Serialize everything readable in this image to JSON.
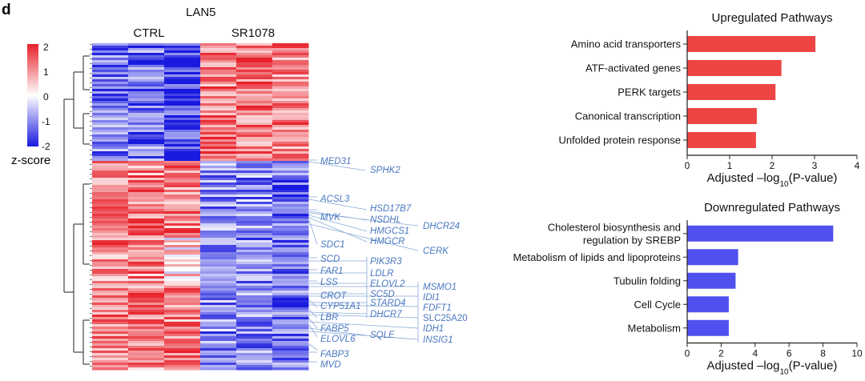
{
  "panel_letter": "d",
  "heatmap": {
    "cell_line": "LAN5",
    "group_labels": [
      "CTRL",
      "SR1078"
    ],
    "colorbar": {
      "ticks": [
        "2",
        "1",
        "0",
        "-1",
        "-2"
      ],
      "label": "z-score",
      "colors": {
        "high": "#e8202a",
        "mid": "#ffffff",
        "low": "#1a1adf"
      }
    },
    "genes": [
      "MED31",
      "SPHK2",
      "ACSL3",
      "HSD17B7",
      "MVK",
      "NSDHL",
      "DHCR24",
      "HMGCS1",
      "HMGCR",
      "SDC1",
      "CERK",
      "SCD",
      "PIK3R3",
      "FAR1",
      "LDLR",
      "LSS",
      "ELOVL2",
      "MSMO1",
      "SC5D",
      "IDI1",
      "CROT",
      "STARD4",
      "FDFT1",
      "CYP51A1",
      "DHCR7",
      "SLC25A20",
      "LBR",
      "IDH1",
      "FABP5",
      "SQLE",
      "INSIG1",
      "ELOVL6",
      "FABP3",
      "MVD"
    ],
    "gene_label_color": "#4a78c0"
  },
  "chart_data": [
    {
      "type": "bar",
      "orientation": "horizontal",
      "title": "Upregulated Pathways",
      "categories": [
        "Amino acid transporters",
        "ATF-activated genes",
        "PERK targets",
        "Canonical transcription",
        "Unfolded protein response"
      ],
      "values": [
        3.02,
        2.22,
        2.08,
        1.64,
        1.62
      ],
      "xlabel_main": "Adjusted –log",
      "xlabel_sub": "10",
      "xlabel_tail": "(P-value)",
      "xlim": [
        0,
        4
      ],
      "xticks": [
        0,
        1,
        2,
        3,
        4
      ],
      "bar_color": "#ee4444",
      "grid": false
    },
    {
      "type": "bar",
      "orientation": "horizontal",
      "title": "Downregulated Pathways",
      "categories": [
        "Cholesterol biosynthesis and\nregulation by SREBP",
        "Metabolism of lipids and lipoproteins",
        "Tubulin folding",
        "Cell Cycle",
        "Metabolism"
      ],
      "values": [
        8.6,
        3.0,
        2.85,
        2.45,
        2.45
      ],
      "xlabel_main": "Adjusted –log",
      "xlabel_sub": "10",
      "xlabel_tail": "(P-value)",
      "xlim": [
        0,
        10
      ],
      "xticks": [
        0,
        2,
        4,
        6,
        8,
        10
      ],
      "bar_color": "#5050ee",
      "grid": false
    }
  ]
}
